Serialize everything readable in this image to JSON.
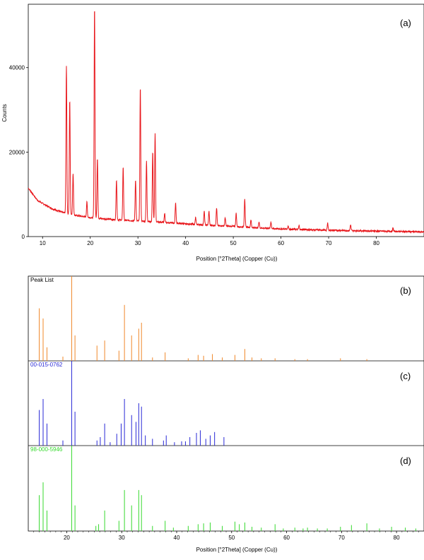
{
  "chart_data": [
    {
      "type": "line",
      "panel_label": "(a)",
      "xlabel": "Position [°2Theta] (Copper (Cu))",
      "ylabel": "Counts",
      "xlim": [
        7,
        90
      ],
      "ylim": [
        0,
        55000
      ],
      "x_ticks": [
        10,
        20,
        30,
        40,
        50,
        60,
        70,
        80
      ],
      "y_ticks": [
        0,
        20000,
        40000
      ],
      "color": "#e8161b",
      "background": {
        "x": [
          7,
          9,
          12,
          14,
          17,
          20,
          25,
          30,
          35,
          40,
          45,
          50,
          55,
          60,
          70,
          80,
          90
        ],
        "y": [
          11500,
          8500,
          6600,
          5800,
          5000,
          4500,
          4000,
          3700,
          3400,
          3000,
          2700,
          2400,
          2100,
          1800,
          1500,
          1300,
          1100
        ]
      },
      "peaks": [
        {
          "x": 15.0,
          "y": 40500
        },
        {
          "x": 15.7,
          "y": 32500
        },
        {
          "x": 16.4,
          "y": 15000
        },
        {
          "x": 19.3,
          "y": 8200
        },
        {
          "x": 20.9,
          "y": 54500
        },
        {
          "x": 21.5,
          "y": 18500
        },
        {
          "x": 25.5,
          "y": 13500
        },
        {
          "x": 26.9,
          "y": 16500
        },
        {
          "x": 29.5,
          "y": 13500
        },
        {
          "x": 30.5,
          "y": 35500
        },
        {
          "x": 31.8,
          "y": 18000
        },
        {
          "x": 33.1,
          "y": 20000
        },
        {
          "x": 33.6,
          "y": 24500
        },
        {
          "x": 35.6,
          "y": 5500
        },
        {
          "x": 37.9,
          "y": 8000
        },
        {
          "x": 42.1,
          "y": 4500
        },
        {
          "x": 43.9,
          "y": 6000
        },
        {
          "x": 44.9,
          "y": 6000
        },
        {
          "x": 46.5,
          "y": 6800
        },
        {
          "x": 48.3,
          "y": 4500
        },
        {
          "x": 50.6,
          "y": 5500
        },
        {
          "x": 52.4,
          "y": 9000
        },
        {
          "x": 53.7,
          "y": 4000
        },
        {
          "x": 55.4,
          "y": 3500
        },
        {
          "x": 57.9,
          "y": 3500
        },
        {
          "x": 61.5,
          "y": 2500
        },
        {
          "x": 63.8,
          "y": 2600
        },
        {
          "x": 69.8,
          "y": 3200
        },
        {
          "x": 74.6,
          "y": 2800
        },
        {
          "x": 83.5,
          "y": 2000
        }
      ]
    },
    {
      "type": "bar",
      "panel_label": "(b)",
      "series_label": "Peak List",
      "color": "#f0882a",
      "peaks": [
        {
          "x": 15.0,
          "y": 0.62
        },
        {
          "x": 15.7,
          "y": 0.5
        },
        {
          "x": 16.4,
          "y": 0.16
        },
        {
          "x": 19.3,
          "y": 0.05
        },
        {
          "x": 20.9,
          "y": 1.0
        },
        {
          "x": 21.5,
          "y": 0.3
        },
        {
          "x": 25.5,
          "y": 0.18
        },
        {
          "x": 26.9,
          "y": 0.24
        },
        {
          "x": 29.5,
          "y": 0.12
        },
        {
          "x": 30.5,
          "y": 0.66
        },
        {
          "x": 31.8,
          "y": 0.3
        },
        {
          "x": 33.1,
          "y": 0.38
        },
        {
          "x": 33.6,
          "y": 0.45
        },
        {
          "x": 35.6,
          "y": 0.04
        },
        {
          "x": 37.9,
          "y": 0.1
        },
        {
          "x": 42.1,
          "y": 0.03
        },
        {
          "x": 43.9,
          "y": 0.07
        },
        {
          "x": 44.9,
          "y": 0.06
        },
        {
          "x": 46.5,
          "y": 0.08
        },
        {
          "x": 48.3,
          "y": 0.04
        },
        {
          "x": 50.6,
          "y": 0.07
        },
        {
          "x": 52.4,
          "y": 0.14
        },
        {
          "x": 53.7,
          "y": 0.04
        },
        {
          "x": 55.4,
          "y": 0.03
        },
        {
          "x": 57.9,
          "y": 0.03
        },
        {
          "x": 61.5,
          "y": 0.02
        },
        {
          "x": 63.8,
          "y": 0.02
        },
        {
          "x": 69.8,
          "y": 0.03
        },
        {
          "x": 74.6,
          "y": 0.02
        }
      ]
    },
    {
      "type": "bar",
      "panel_label": "(c)",
      "series_label": "00-015-0762",
      "color": "#2929d6",
      "peaks": [
        {
          "x": 15.0,
          "y": 0.42
        },
        {
          "x": 15.7,
          "y": 0.55
        },
        {
          "x": 16.4,
          "y": 0.26
        },
        {
          "x": 19.3,
          "y": 0.06
        },
        {
          "x": 20.9,
          "y": 1.0
        },
        {
          "x": 21.5,
          "y": 0.4
        },
        {
          "x": 25.5,
          "y": 0.06
        },
        {
          "x": 26.1,
          "y": 0.1
        },
        {
          "x": 26.9,
          "y": 0.26
        },
        {
          "x": 27.9,
          "y": 0.04
        },
        {
          "x": 29.1,
          "y": 0.14
        },
        {
          "x": 29.9,
          "y": 0.26
        },
        {
          "x": 30.5,
          "y": 0.55
        },
        {
          "x": 31.8,
          "y": 0.36
        },
        {
          "x": 32.6,
          "y": 0.28
        },
        {
          "x": 33.1,
          "y": 0.5
        },
        {
          "x": 33.6,
          "y": 0.46
        },
        {
          "x": 34.3,
          "y": 0.12
        },
        {
          "x": 35.6,
          "y": 0.08
        },
        {
          "x": 37.6,
          "y": 0.06
        },
        {
          "x": 38.1,
          "y": 0.12
        },
        {
          "x": 39.6,
          "y": 0.04
        },
        {
          "x": 40.9,
          "y": 0.05
        },
        {
          "x": 41.6,
          "y": 0.05
        },
        {
          "x": 42.4,
          "y": 0.1
        },
        {
          "x": 43.6,
          "y": 0.15
        },
        {
          "x": 44.3,
          "y": 0.18
        },
        {
          "x": 45.3,
          "y": 0.08
        },
        {
          "x": 46.1,
          "y": 0.12
        },
        {
          "x": 46.9,
          "y": 0.16
        },
        {
          "x": 48.6,
          "y": 0.1
        }
      ]
    },
    {
      "type": "bar",
      "panel_label": "(d)",
      "series_label": "98-000-5946",
      "color": "#37d92e",
      "xlabel": "Position [°2Theta] (Copper (Cu))",
      "xlim": [
        13,
        85
      ],
      "x_ticks": [
        20,
        30,
        40,
        50,
        60,
        70,
        80
      ],
      "peaks": [
        {
          "x": 15.0,
          "y": 0.42
        },
        {
          "x": 15.7,
          "y": 0.57
        },
        {
          "x": 16.4,
          "y": 0.24
        },
        {
          "x": 20.9,
          "y": 1.0
        },
        {
          "x": 21.5,
          "y": 0.3
        },
        {
          "x": 25.3,
          "y": 0.06
        },
        {
          "x": 25.8,
          "y": 0.08
        },
        {
          "x": 26.9,
          "y": 0.24
        },
        {
          "x": 29.5,
          "y": 0.12
        },
        {
          "x": 30.5,
          "y": 0.48
        },
        {
          "x": 31.8,
          "y": 0.3
        },
        {
          "x": 33.1,
          "y": 0.48
        },
        {
          "x": 33.6,
          "y": 0.42
        },
        {
          "x": 35.6,
          "y": 0.06
        },
        {
          "x": 37.9,
          "y": 0.12
        },
        {
          "x": 39.4,
          "y": 0.04
        },
        {
          "x": 42.1,
          "y": 0.06
        },
        {
          "x": 43.9,
          "y": 0.08
        },
        {
          "x": 44.9,
          "y": 0.09
        },
        {
          "x": 46.1,
          "y": 0.1
        },
        {
          "x": 48.3,
          "y": 0.06
        },
        {
          "x": 50.6,
          "y": 0.11
        },
        {
          "x": 51.4,
          "y": 0.08
        },
        {
          "x": 52.4,
          "y": 0.1
        },
        {
          "x": 53.7,
          "y": 0.05
        },
        {
          "x": 55.4,
          "y": 0.04
        },
        {
          "x": 57.9,
          "y": 0.08
        },
        {
          "x": 59.4,
          "y": 0.03
        },
        {
          "x": 61.5,
          "y": 0.04
        },
        {
          "x": 63.0,
          "y": 0.03
        },
        {
          "x": 63.8,
          "y": 0.04
        },
        {
          "x": 65.6,
          "y": 0.03
        },
        {
          "x": 67.4,
          "y": 0.03
        },
        {
          "x": 69.8,
          "y": 0.05
        },
        {
          "x": 71.8,
          "y": 0.07
        },
        {
          "x": 74.6,
          "y": 0.09
        },
        {
          "x": 76.9,
          "y": 0.03
        },
        {
          "x": 79.1,
          "y": 0.05
        },
        {
          "x": 81.6,
          "y": 0.04
        },
        {
          "x": 83.5,
          "y": 0.03
        }
      ]
    }
  ]
}
